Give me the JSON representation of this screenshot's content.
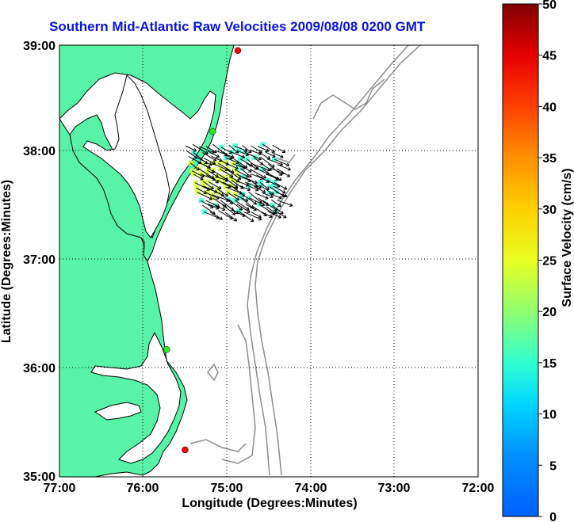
{
  "title": "Southern Mid-Atlantic Raw Velocities 2009/08/08 0200 GMT",
  "xlabel": "Longitude (Degrees:Minutes)",
  "ylabel": "Latitude (Degrees:Minutes)",
  "colorbar_label": "Surface Velocity (cm/s)",
  "x_ticks": [
    "77:00",
    "76:00",
    "75:00",
    "74:00",
    "73:00",
    "72:00"
  ],
  "y_ticks": [
    "39:00",
    "38:00",
    "37:00",
    "36:00",
    "35:00"
  ],
  "colorbar_ticks": [
    "50",
    "45",
    "40",
    "35",
    "30",
    "25",
    "20",
    "15",
    "10",
    "5",
    "0"
  ],
  "colors": {
    "land": "#57f3a6",
    "water": "#ffffff",
    "coastline": "#000000",
    "bathymetry": "#8c8c8c",
    "title": "#0a14e6",
    "station_green": "#2ee82e",
    "station_red": "#ff0000"
  },
  "chart_data": {
    "type": "vector-field map",
    "xlim": [
      -77,
      -72
    ],
    "ylim": [
      35,
      39
    ],
    "grid": true,
    "colorbar_range": [
      0,
      50
    ],
    "colorbar_units": "cm/s",
    "stations": [
      {
        "lon": -74.87,
        "lat": 38.95,
        "color": "red"
      },
      {
        "lon": -75.17,
        "lat": 38.2,
        "color": "green"
      },
      {
        "lon": -75.72,
        "lat": 36.18,
        "color": "green"
      },
      {
        "lon": -75.5,
        "lat": 35.25,
        "color": "red"
      }
    ]
  }
}
